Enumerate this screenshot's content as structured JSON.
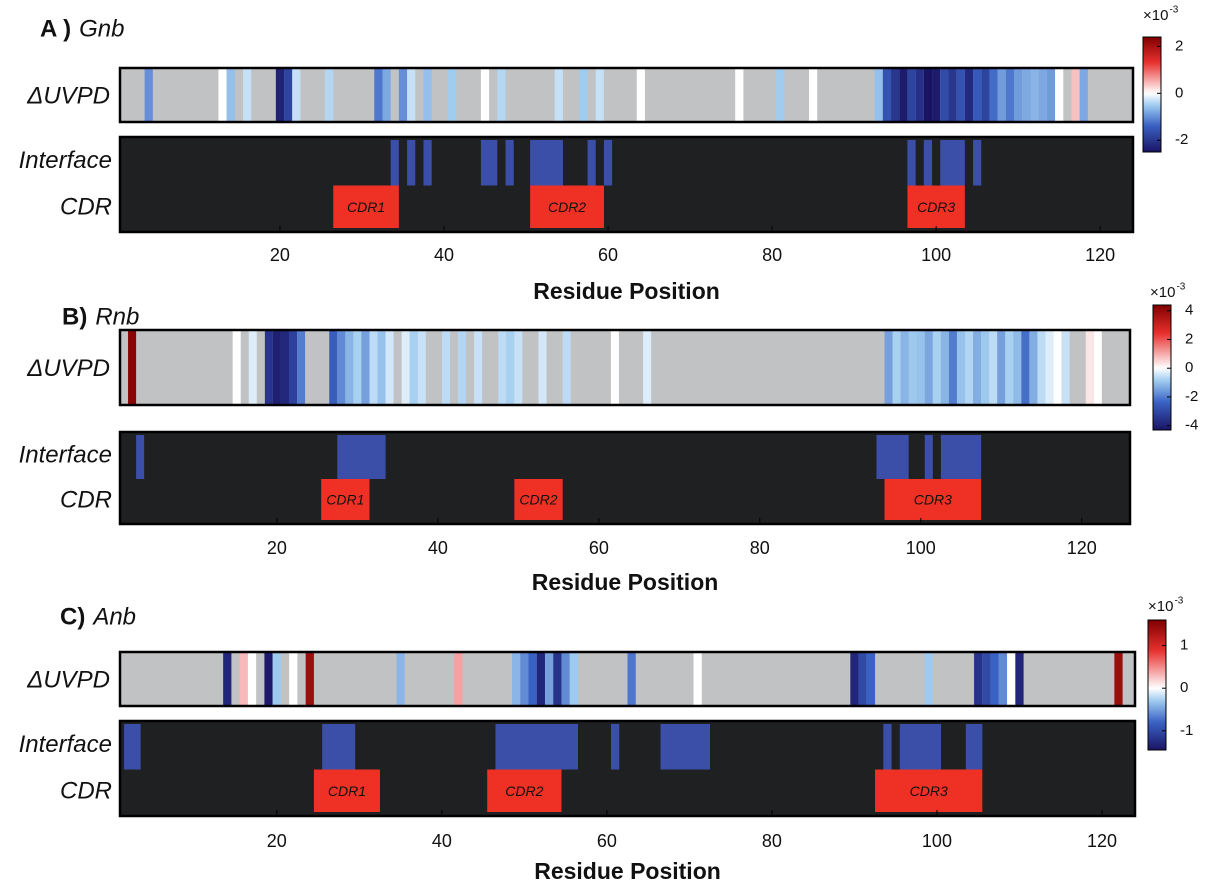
{
  "chart_data": [
    {
      "type": "residue-map",
      "panel_label": "A )",
      "title": "Gnb",
      "row_labels": [
        "ΔUVPD",
        "Interface",
        "CDR"
      ],
      "xlabel": "Residue Position",
      "xlim": [
        0.5,
        124
      ],
      "xticks": [
        20,
        40,
        60,
        80,
        100,
        120
      ],
      "uvpd": {
        "residues": [
          4,
          13,
          14,
          16,
          20,
          21,
          22,
          26,
          32,
          33,
          35,
          36,
          38,
          41,
          45,
          47,
          54,
          57,
          59,
          64,
          76,
          81,
          85,
          93,
          94,
          95,
          96,
          97,
          98,
          99,
          100,
          101,
          102,
          103,
          104,
          105,
          106,
          107,
          108,
          109,
          110,
          111,
          112,
          113,
          114,
          115,
          117,
          118
        ],
        "values": [
          -1.0,
          0,
          -0.6,
          -0.3,
          -2.3,
          -1.8,
          -0.3,
          -0.4,
          -1.2,
          -0.8,
          -1.0,
          -0.3,
          -0.6,
          -0.5,
          0,
          -0.4,
          -0.3,
          -0.5,
          -0.3,
          0,
          0,
          -0.5,
          0,
          -0.6,
          -1.6,
          -2.0,
          -2.4,
          -1.8,
          -2.1,
          -2.5,
          -2.4,
          -1.7,
          -2.0,
          -1.6,
          -2.2,
          -1.5,
          -1.8,
          -1.3,
          -0.9,
          -1.2,
          -0.9,
          -0.8,
          -0.7,
          -0.8,
          -0.9,
          0,
          0.4,
          -0.8
        ]
      },
      "interface": [
        [
          34,
          34
        ],
        [
          36,
          36
        ],
        [
          38,
          38
        ],
        [
          45,
          46
        ],
        [
          48,
          48
        ],
        [
          51,
          54
        ],
        [
          58,
          58
        ],
        [
          60,
          60
        ],
        [
          97,
          97
        ],
        [
          99,
          99
        ],
        [
          101,
          103
        ],
        [
          105,
          105
        ]
      ],
      "cdr": {
        "names": [
          "CDR1",
          "CDR2",
          "CDR3"
        ],
        "ranges": [
          [
            27,
            34
          ],
          [
            51,
            59
          ],
          [
            97,
            103
          ]
        ]
      },
      "colorbar": {
        "lim": [
          -2.5,
          2.4
        ],
        "ticks": [
          -2,
          0,
          2
        ],
        "base": "×10",
        "exponent": "-3"
      }
    },
    {
      "type": "residue-map",
      "panel_label": "B)",
      "title": "Rnb",
      "row_labels": [
        "ΔUVPD",
        "Interface",
        "CDR"
      ],
      "xlabel": "Residue Position",
      "xlim": [
        0.5,
        126
      ],
      "xticks": [
        20,
        40,
        60,
        80,
        100,
        120
      ],
      "uvpd": {
        "residues": [
          2,
          15,
          17,
          19,
          20,
          21,
          22,
          23,
          27,
          28,
          29,
          30,
          31,
          32,
          33,
          34,
          36,
          37,
          38,
          41,
          43,
          45,
          48,
          49,
          50,
          53,
          56,
          62,
          66,
          96,
          97,
          98,
          99,
          100,
          101,
          102,
          103,
          104,
          105,
          106,
          107,
          108,
          109,
          110,
          111,
          112,
          113,
          114,
          115,
          116,
          117,
          118,
          121,
          122
        ],
        "values": [
          4.2,
          0,
          -0.3,
          -3.5,
          -4.0,
          -3.8,
          -3.2,
          -2.0,
          -2.5,
          -1.8,
          -1.2,
          -0.8,
          -1.5,
          -0.6,
          -1.0,
          -0.4,
          -0.3,
          -0.8,
          -0.5,
          -0.6,
          -0.7,
          -0.5,
          -0.6,
          -0.8,
          -0.5,
          -0.4,
          -0.6,
          0,
          -0.3,
          -1.5,
          -0.8,
          -1.2,
          -0.9,
          -1.0,
          -1.4,
          -0.8,
          -1.2,
          -2.0,
          -1.0,
          -0.7,
          -1.3,
          -0.9,
          -0.6,
          -1.5,
          -0.8,
          -1.1,
          -2.2,
          -1.3,
          -0.6,
          -0.3,
          0,
          -0.5,
          0.3,
          0
        ]
      },
      "interface": [
        [
          3,
          3
        ],
        [
          28,
          33
        ],
        [
          95,
          98
        ],
        [
          101,
          101
        ],
        [
          103,
          107
        ]
      ],
      "cdr": {
        "names": [
          "CDR1",
          "CDR2",
          "CDR3"
        ],
        "ranges": [
          [
            26,
            31
          ],
          [
            50,
            55
          ],
          [
            96,
            107
          ]
        ]
      },
      "colorbar": {
        "lim": [
          -4.3,
          4.4
        ],
        "ticks": [
          -4,
          -2,
          0,
          2,
          4
        ],
        "base": "×10",
        "exponent": "-3"
      }
    },
    {
      "type": "residue-map",
      "panel_label": "C)",
      "title": "Anb",
      "row_labels": [
        "ΔUVPD",
        "Interface",
        "CDR"
      ],
      "xlabel": "Residue Position",
      "xlim": [
        1,
        124
      ],
      "xticks": [
        20,
        40,
        60,
        80,
        100,
        120
      ],
      "uvpd": {
        "residues": [
          14,
          16,
          17,
          19,
          20,
          22,
          24,
          35,
          42,
          49,
          50,
          51,
          52,
          53,
          54,
          55,
          56,
          63,
          71,
          90,
          91,
          92,
          99,
          105,
          106,
          107,
          108,
          109,
          110,
          122
        ],
        "values": [
          -1.3,
          0.3,
          0,
          -1.4,
          -0.3,
          0,
          1.4,
          -0.4,
          0.4,
          -0.4,
          -0.6,
          -0.8,
          -1.3,
          -0.5,
          -1.2,
          -0.6,
          -0.3,
          -0.7,
          0,
          -1.3,
          -1.0,
          -0.8,
          -0.3,
          -1.2,
          -1.0,
          -0.8,
          -0.6,
          0,
          -1.3,
          1.4
        ]
      },
      "interface": [
        [
          2,
          3
        ],
        [
          26,
          29
        ],
        [
          47,
          56
        ],
        [
          61,
          61
        ],
        [
          67,
          72
        ],
        [
          94,
          94
        ],
        [
          96,
          100
        ],
        [
          104,
          105
        ]
      ],
      "cdr": {
        "names": [
          "CDR1",
          "CDR2",
          "CDR3"
        ],
        "ranges": [
          [
            25,
            32
          ],
          [
            46,
            54
          ],
          [
            93,
            105
          ]
        ]
      },
      "colorbar": {
        "lim": [
          -1.45,
          1.6
        ],
        "ticks": [
          -1,
          0,
          1
        ],
        "base": "×10",
        "exponent": "-3"
      }
    }
  ]
}
